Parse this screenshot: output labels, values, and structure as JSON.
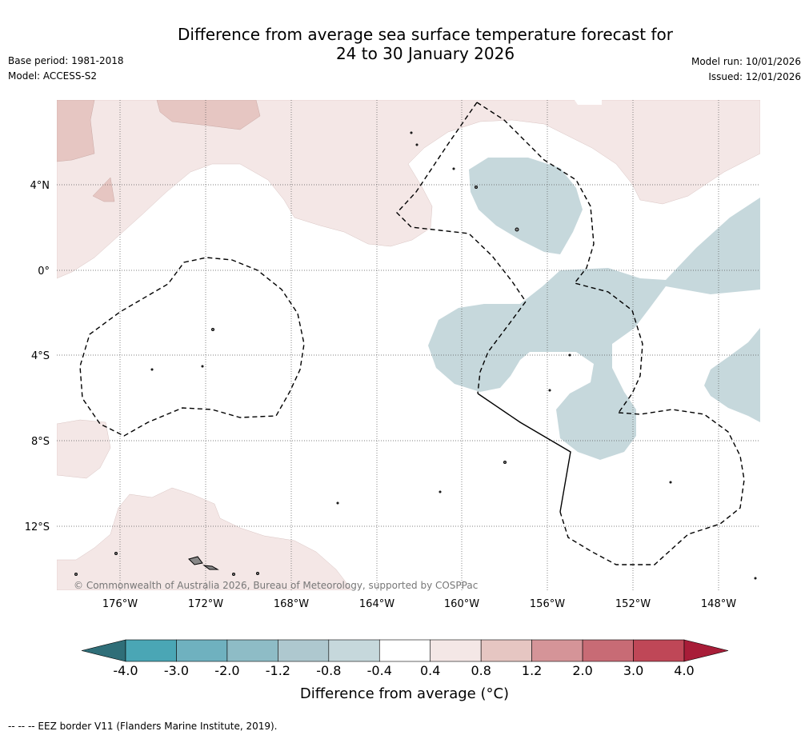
{
  "title_line1": "Difference from average sea surface temperature forecast for",
  "title_line2": "24 to 30 January 2026",
  "base_period": "Base period: 1981-2018",
  "model": "Model: ACCESS-S2",
  "model_run": "Model run: 10/01/2026",
  "issued": "Issued: 12/01/2026",
  "copyright": "© Commonwealth of Australia 2026, Bureau of Meteorology, supported by COSPPac",
  "lat_labels": [
    "4°N",
    "0°",
    "4°S",
    "8°S",
    "12°S"
  ],
  "lon_labels": [
    "176°W",
    "172°W",
    "168°W",
    "164°W",
    "160°W",
    "156°W",
    "152°W",
    "148°W"
  ],
  "colorbar": {
    "ticks": [
      "-4.0",
      "-3.0",
      "-2.0",
      "-1.2",
      "-0.8",
      "-0.4",
      "0.4",
      "0.8",
      "1.2",
      "2.0",
      "3.0",
      "4.0"
    ],
    "colors": [
      "#2f6e78",
      "#4aa6b5",
      "#6fb1bf",
      "#8ebcc6",
      "#aec8cf",
      "#c6d8dc",
      "#ffffff",
      "#f4e7e6",
      "#e6c6c2",
      "#d59498",
      "#c86b75",
      "#bf4757",
      "#a81d38"
    ],
    "label": "Difference from average (°C)"
  },
  "footnote": "--  --  -- EEZ border V11 (Flanders Marine Institute, 2019)."
}
